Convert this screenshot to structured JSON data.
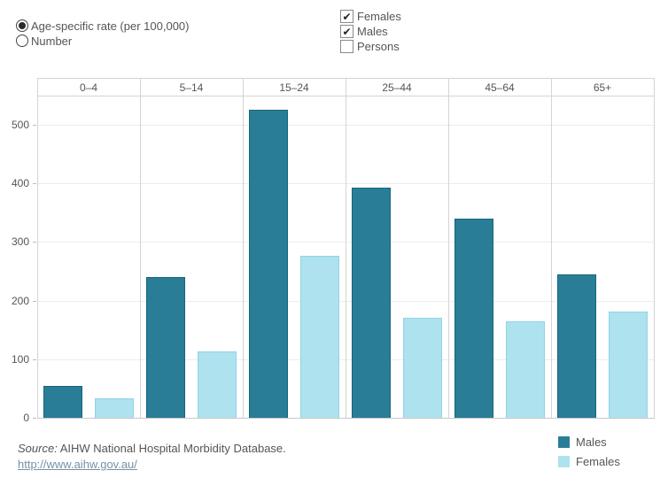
{
  "controls": {
    "measure_radios": [
      {
        "label": "Age-specific rate (per 100,000)",
        "selected": true
      },
      {
        "label": "Number",
        "selected": false
      }
    ],
    "sex_checkboxes": [
      {
        "label": "Females",
        "checked": true
      },
      {
        "label": "Males",
        "checked": true
      },
      {
        "label": "Persons",
        "checked": false
      }
    ]
  },
  "chart_data": {
    "type": "bar",
    "categories": [
      "0–4",
      "5–14",
      "15–24",
      "25–44",
      "45–64",
      "65+"
    ],
    "series": [
      {
        "name": "Males",
        "color": "#2a7d96",
        "border_color": "#17657d",
        "values": [
          55,
          240,
          525,
          392,
          340,
          245
        ]
      },
      {
        "name": "Females",
        "color": "#ade2ee",
        "border_color": "#90d4e6",
        "values": [
          33,
          113,
          277,
          171,
          165,
          182
        ]
      }
    ],
    "title": "",
    "xlabel": "",
    "ylabel": "",
    "yticks": [
      0,
      100,
      200,
      300,
      400,
      500
    ],
    "ylim": [
      0,
      548
    ],
    "grid": true,
    "legend_position": "bottom-right"
  },
  "legend": {
    "items": [
      {
        "label": "Males",
        "color": "#2a7d96"
      },
      {
        "label": "Females",
        "color": "#ade2ee"
      }
    ]
  },
  "footer": {
    "source_prefix": "Source:",
    "source_text": "AIHW National Hospital Morbidity Database.",
    "link": "http://www.aihw.gov.au/"
  }
}
